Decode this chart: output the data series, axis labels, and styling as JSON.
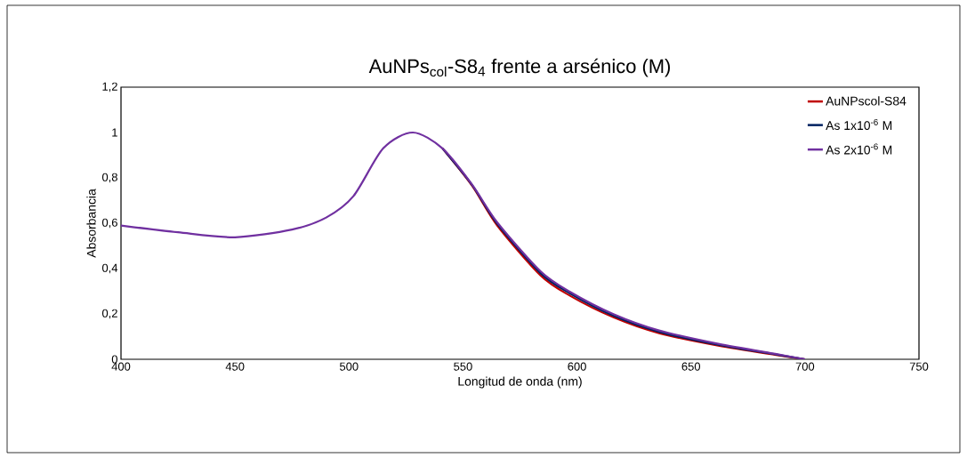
{
  "chart_data": {
    "type": "line",
    "title": "AuNPs$_{col}$-S8$_{4}$ frente a arsénico (M)",
    "xlabel": "Longitud de onda (nm)",
    "ylabel": "Absorbancia",
    "x": [
      400,
      425,
      450,
      475,
      490,
      502,
      515,
      528,
      541,
      554,
      565,
      584,
      597,
      616,
      636,
      662,
      688,
      700
    ],
    "series": [
      {
        "name": "AuNPscol-S84",
        "color": "#c00000",
        "values": [
          null,
          null,
          null,
          null,
          null,
          null,
          null,
          null,
          0.93,
          0.765,
          0.59,
          0.37,
          0.28,
          0.185,
          0.115,
          0.06,
          0.018,
          0
        ]
      },
      {
        "name": "As 1x10$^{-6}$ M",
        "color": "#002060",
        "values": [
          null,
          null,
          null,
          null,
          null,
          null,
          null,
          null,
          0.93,
          0.768,
          0.598,
          0.38,
          0.29,
          0.192,
          0.121,
          0.064,
          0.02,
          0
        ]
      },
      {
        "name": "As 2x10$^{-6}$ M",
        "color": "#7030a0",
        "values": [
          0.59,
          0.56,
          0.538,
          0.572,
          0.625,
          0.72,
          0.93,
          1.0,
          0.93,
          0.77,
          0.604,
          0.388,
          0.297,
          0.199,
          0.127,
          0.068,
          0.022,
          0
        ]
      }
    ],
    "xlim": [
      400,
      750
    ],
    "xticks": [
      400,
      450,
      500,
      550,
      600,
      650,
      700,
      750
    ],
    "ylim": [
      0,
      1.2
    ],
    "yticks": [
      {
        "value": 0,
        "label": "0"
      },
      {
        "value": 0.2,
        "label": "0,2"
      },
      {
        "value": 0.4,
        "label": "0,4"
      },
      {
        "value": 0.6,
        "label": "0,6"
      },
      {
        "value": 0.8,
        "label": "0,8"
      },
      {
        "value": 1,
        "label": "1"
      },
      {
        "value": 1.2,
        "label": "1,2"
      }
    ],
    "grid": false,
    "legend": "top right",
    "marker": "none",
    "line_style": "solid"
  }
}
